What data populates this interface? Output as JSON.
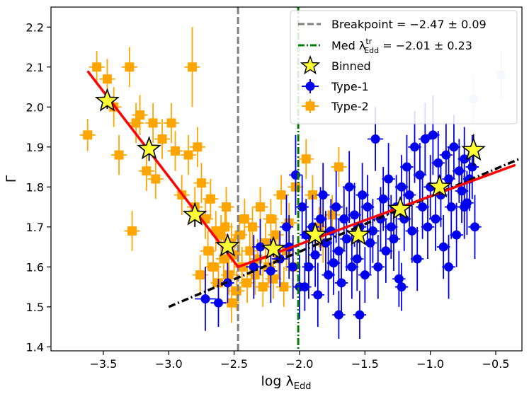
{
  "chart_data": {
    "type": "scatter",
    "xlabel_main": "log λ",
    "xlabel_sub": "Edd",
    "ylabel": "Γ",
    "xlim": [
      -3.9,
      -0.3
    ],
    "ylim": [
      1.39,
      2.25
    ],
    "xticks": [
      -3.5,
      -3.0,
      -2.5,
      -2.0,
      -1.5,
      -1.0,
      -0.5
    ],
    "xtick_labels": [
      "−3.5",
      "−3.0",
      "−2.5",
      "−2.0",
      "−1.5",
      "−1.0",
      "−0.5"
    ],
    "yticks": [
      1.4,
      1.5,
      1.6,
      1.7,
      1.8,
      1.9,
      2.0,
      2.1,
      2.2
    ],
    "ytick_labels": [
      "1.4",
      "1.5",
      "1.6",
      "1.7",
      "1.8",
      "1.9",
      "2.0",
      "2.1",
      "2.2"
    ],
    "grid": false,
    "legend_position": "top-right",
    "colors": {
      "type1": "#0000ee",
      "type2": "#ffa500",
      "binned": "#ffff33",
      "breakpoint_line": "#808080",
      "median_line": "#008000",
      "fit_red": "#ff0000",
      "fit_black": "#000000"
    },
    "legend": {
      "breakpoint": "Breakpoint = −2.47 ± 0.09",
      "median_pre": "Med λ",
      "median_sup": "tr",
      "median_sub": "Edd",
      "median_post": " = −2.01 ± 0.23",
      "binned": "Binned",
      "type1": "Type-1",
      "type2": "Type-2"
    },
    "vlines": [
      {
        "name": "breakpoint",
        "x": -2.47
      },
      {
        "name": "median",
        "x": -2.01
      }
    ],
    "fit_red": [
      [
        -3.62,
        2.09
      ],
      [
        -2.47,
        1.6
      ],
      [
        -0.35,
        1.855
      ]
    ],
    "fit_black": [
      [
        -3.0,
        1.5
      ],
      [
        -0.32,
        1.87
      ]
    ],
    "series": [
      {
        "name": "Type-1",
        "points": [
          [
            -2.72,
            1.52,
            0.08,
            0.08
          ],
          [
            -2.62,
            1.51,
            0.06,
            0.06
          ],
          [
            -2.55,
            1.56,
            0.05,
            0.05
          ],
          [
            -2.35,
            1.6,
            0.06,
            0.08
          ],
          [
            -2.3,
            1.65,
            0.06,
            0.07
          ],
          [
            -2.22,
            1.59,
            0.05,
            0.08
          ],
          [
            -2.15,
            1.62,
            0.06,
            0.07
          ],
          [
            -2.1,
            1.7,
            0.05,
            0.08
          ],
          [
            -2.08,
            1.65,
            0.06,
            0.08
          ],
          [
            -2.05,
            1.6,
            0.05,
            0.08
          ],
          [
            -2.03,
            1.83,
            0.05,
            0.1
          ],
          [
            -2.0,
            1.55,
            0.05,
            0.08
          ],
          [
            -1.98,
            1.75,
            0.05,
            0.08
          ],
          [
            -1.95,
            1.68,
            0.05,
            0.09
          ],
          [
            -1.93,
            1.6,
            0.05,
            0.08
          ],
          [
            -1.9,
            1.7,
            0.05,
            0.08
          ],
          [
            -1.88,
            1.63,
            0.05,
            0.08
          ],
          [
            -1.86,
            1.53,
            0.05,
            0.08
          ],
          [
            -1.84,
            1.72,
            0.05,
            0.08
          ],
          [
            -1.82,
            1.78,
            0.05,
            0.08
          ],
          [
            -1.8,
            1.66,
            0.05,
            0.08
          ],
          [
            -1.78,
            1.58,
            0.05,
            0.07
          ],
          [
            -1.76,
            1.69,
            0.05,
            0.08
          ],
          [
            -1.74,
            1.61,
            0.05,
            0.08
          ],
          [
            -1.72,
            1.75,
            0.05,
            0.09
          ],
          [
            -1.7,
            1.64,
            0.05,
            0.08
          ],
          [
            -1.68,
            1.56,
            0.05,
            0.08
          ],
          [
            -1.66,
            1.72,
            0.05,
            0.08
          ],
          [
            -1.64,
            1.67,
            0.05,
            0.08
          ],
          [
            -1.62,
            1.8,
            0.05,
            0.09
          ],
          [
            -1.6,
            1.6,
            0.05,
            0.08
          ],
          [
            -1.58,
            1.73,
            0.05,
            0.08
          ],
          [
            -1.56,
            1.62,
            0.05,
            0.08
          ],
          [
            -1.54,
            1.7,
            0.05,
            0.08
          ],
          [
            -1.52,
            1.78,
            0.05,
            0.08
          ],
          [
            -1.5,
            1.58,
            0.05,
            0.07
          ],
          [
            -1.48,
            1.75,
            0.05,
            0.08
          ],
          [
            -1.46,
            1.66,
            0.05,
            0.08
          ],
          [
            -1.44,
            1.69,
            0.05,
            0.08
          ],
          [
            -1.42,
            1.92,
            0.06,
            0.08
          ],
          [
            -1.4,
            1.6,
            0.05,
            0.08
          ],
          [
            -1.38,
            1.72,
            0.05,
            0.08
          ],
          [
            -1.36,
            1.77,
            0.05,
            0.08
          ],
          [
            -1.34,
            1.64,
            0.05,
            0.08
          ],
          [
            -1.32,
            1.82,
            0.05,
            0.09
          ],
          [
            -1.3,
            1.7,
            0.05,
            0.08
          ],
          [
            -1.28,
            1.67,
            0.05,
            0.08
          ],
          [
            -1.26,
            1.75,
            0.05,
            0.08
          ],
          [
            -1.24,
            1.57,
            0.05,
            0.07
          ],
          [
            -1.22,
            1.8,
            0.05,
            0.08
          ],
          [
            -1.2,
            1.72,
            0.05,
            0.08
          ],
          [
            -1.18,
            1.85,
            0.05,
            0.08
          ],
          [
            -1.16,
            1.78,
            0.05,
            0.08
          ],
          [
            -1.14,
            1.69,
            0.05,
            0.08
          ],
          [
            -1.12,
            1.9,
            0.05,
            0.09
          ],
          [
            -1.1,
            1.62,
            0.05,
            0.08
          ],
          [
            -1.08,
            1.83,
            0.05,
            0.08
          ],
          [
            -1.06,
            1.75,
            0.05,
            0.08
          ],
          [
            -1.04,
            1.92,
            0.05,
            0.09
          ],
          [
            -1.02,
            1.7,
            0.05,
            0.08
          ],
          [
            -1.0,
            1.8,
            0.05,
            0.08
          ],
          [
            -0.98,
            1.93,
            0.05,
            0.1
          ],
          [
            -0.96,
            1.72,
            0.05,
            0.08
          ],
          [
            -0.94,
            1.86,
            0.05,
            0.08
          ],
          [
            -0.92,
            1.78,
            0.05,
            0.08
          ],
          [
            -0.9,
            1.65,
            0.05,
            0.08
          ],
          [
            -0.88,
            1.88,
            0.05,
            0.08
          ],
          [
            -0.86,
            1.82,
            0.05,
            0.08
          ],
          [
            -0.84,
            1.75,
            0.05,
            0.08
          ],
          [
            -0.82,
            1.9,
            0.05,
            0.08
          ],
          [
            -0.8,
            1.68,
            0.05,
            0.08
          ],
          [
            -0.78,
            1.84,
            0.05,
            0.08
          ],
          [
            -0.76,
            1.79,
            0.05,
            0.08
          ],
          [
            -0.74,
            1.87,
            0.05,
            0.08
          ],
          [
            -0.72,
            1.76,
            0.05,
            0.08
          ],
          [
            -0.7,
            1.82,
            0.05,
            0.08
          ],
          [
            -0.68,
            1.85,
            0.05,
            0.08
          ],
          [
            -0.74,
            1.75,
            0.05,
            0.08
          ],
          [
            -0.66,
            1.7,
            0.05,
            0.08
          ],
          [
            -0.86,
            1.6,
            0.05,
            0.08
          ],
          [
            -1.54,
            1.48,
            0.05,
            0.06
          ],
          [
            -1.96,
            1.55,
            0.05,
            0.06
          ],
          [
            -1.7,
            1.48,
            0.05,
            0.06
          ],
          [
            -1.22,
            1.55,
            0.05,
            0.06
          ],
          [
            -0.67,
            2.02,
            0.04,
            0.06
          ],
          [
            -0.46,
            2.08,
            0.04,
            0.06
          ]
        ]
      },
      {
        "name": "Type-2",
        "points": [
          [
            -3.62,
            1.93,
            0.06,
            0.04
          ],
          [
            -3.55,
            2.1,
            0.06,
            0.04
          ],
          [
            -3.47,
            2.07,
            0.06,
            0.05
          ],
          [
            -3.42,
            2.0,
            0.06,
            0.05
          ],
          [
            -3.38,
            1.88,
            0.06,
            0.05
          ],
          [
            -3.3,
            2.1,
            0.06,
            0.05
          ],
          [
            -3.25,
            1.96,
            0.06,
            0.05
          ],
          [
            -3.22,
            1.98,
            0.06,
            0.05
          ],
          [
            -3.17,
            1.84,
            0.06,
            0.05
          ],
          [
            -3.12,
            1.96,
            0.06,
            0.05
          ],
          [
            -3.1,
            1.82,
            0.06,
            0.05
          ],
          [
            -3.05,
            1.92,
            0.06,
            0.05
          ],
          [
            -2.98,
            1.96,
            0.06,
            0.05
          ],
          [
            -2.95,
            1.89,
            0.06,
            0.05
          ],
          [
            -2.9,
            1.78,
            0.06,
            0.05
          ],
          [
            -2.85,
            1.88,
            0.06,
            0.05
          ],
          [
            -2.82,
            2.1,
            0.06,
            0.1
          ],
          [
            -2.8,
            1.75,
            0.06,
            0.05
          ],
          [
            -2.78,
            1.9,
            0.06,
            0.05
          ],
          [
            -2.75,
            1.81,
            0.06,
            0.05
          ],
          [
            -2.72,
            1.72,
            0.06,
            0.05
          ],
          [
            -2.7,
            1.64,
            0.06,
            0.05
          ],
          [
            -2.68,
            1.77,
            0.06,
            0.05
          ],
          [
            -2.66,
            1.6,
            0.06,
            0.05
          ],
          [
            -2.64,
            1.69,
            0.06,
            0.05
          ],
          [
            -2.62,
            1.56,
            0.06,
            0.05
          ],
          [
            -2.6,
            1.68,
            0.06,
            0.05
          ],
          [
            -2.58,
            1.62,
            0.06,
            0.05
          ],
          [
            -2.56,
            1.75,
            0.06,
            0.05
          ],
          [
            -2.54,
            1.58,
            0.06,
            0.05
          ],
          [
            -2.52,
            1.66,
            0.06,
            0.05
          ],
          [
            -2.5,
            1.63,
            0.06,
            0.05
          ],
          [
            -2.48,
            1.54,
            0.06,
            0.05
          ],
          [
            -2.46,
            1.68,
            0.06,
            0.05
          ],
          [
            -2.44,
            1.6,
            0.06,
            0.05
          ],
          [
            -2.42,
            1.72,
            0.06,
            0.05
          ],
          [
            -2.4,
            1.56,
            0.06,
            0.05
          ],
          [
            -2.38,
            1.64,
            0.06,
            0.05
          ],
          [
            -2.36,
            1.7,
            0.06,
            0.05
          ],
          [
            -2.34,
            1.58,
            0.06,
            0.05
          ],
          [
            -2.32,
            1.62,
            0.06,
            0.05
          ],
          [
            -2.3,
            1.75,
            0.06,
            0.05
          ],
          [
            -2.28,
            1.55,
            0.06,
            0.05
          ],
          [
            -2.26,
            1.66,
            0.06,
            0.05
          ],
          [
            -2.24,
            1.6,
            0.06,
            0.05
          ],
          [
            -2.22,
            1.72,
            0.06,
            0.05
          ],
          [
            -2.2,
            1.57,
            0.06,
            0.05
          ],
          [
            -2.18,
            1.68,
            0.06,
            0.05
          ],
          [
            -2.16,
            1.62,
            0.06,
            0.05
          ],
          [
            -2.14,
            1.78,
            0.06,
            0.05
          ],
          [
            -2.12,
            1.55,
            0.06,
            0.05
          ],
          [
            -2.1,
            1.64,
            0.06,
            0.05
          ],
          [
            -2.08,
            1.71,
            0.06,
            0.05
          ],
          [
            -2.05,
            1.6,
            0.06,
            0.05
          ],
          [
            -2.03,
            1.8,
            0.06,
            0.05
          ],
          [
            -1.95,
            1.87,
            0.06,
            0.05
          ],
          [
            -1.9,
            1.78,
            0.06,
            0.05
          ],
          [
            -1.85,
            1.7,
            0.06,
            0.05
          ],
          [
            -1.82,
            1.66,
            0.06,
            0.05
          ],
          [
            -1.75,
            1.73,
            0.06,
            0.05
          ],
          [
            -1.7,
            1.85,
            0.06,
            0.05
          ],
          [
            -2.57,
            1.7,
            0.06,
            0.05
          ],
          [
            -2.76,
            1.58,
            0.06,
            0.05
          ],
          [
            -3.28,
            1.69,
            0.06,
            0.05
          ],
          [
            -2.52,
            1.51,
            0.06,
            0.05
          ]
        ]
      },
      {
        "name": "Binned",
        "points": [
          [
            -3.47,
            2.015,
            0,
            0.02
          ],
          [
            -3.15,
            1.895,
            0,
            0.03
          ],
          [
            -2.8,
            1.73,
            0,
            0.03
          ],
          [
            -2.55,
            1.652,
            0,
            0.02
          ],
          [
            -2.2,
            1.645,
            0,
            0.02
          ],
          [
            -1.88,
            1.68,
            0,
            0.02
          ],
          [
            -1.55,
            1.68,
            0,
            0.02
          ],
          [
            -1.23,
            1.745,
            0,
            0.02
          ],
          [
            -0.93,
            1.8,
            0,
            0.02
          ],
          [
            -0.67,
            1.892,
            0,
            0.04
          ]
        ]
      }
    ]
  }
}
